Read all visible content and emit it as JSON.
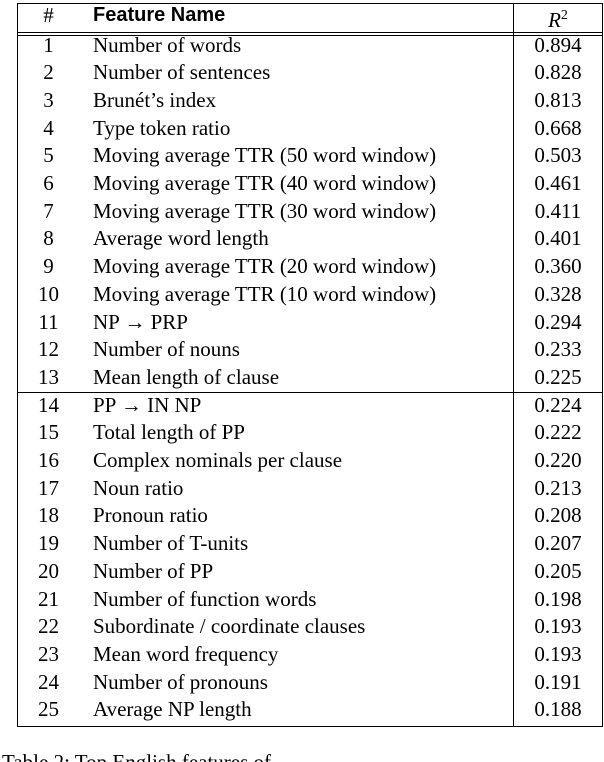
{
  "table": {
    "header": {
      "index": "#",
      "feature": "Feature Name",
      "r2": "R",
      "r2_sup": "2"
    },
    "groups": [
      [
        [
          "1",
          "Number of words",
          "0.894"
        ],
        [
          "2",
          "Number of sentences",
          "0.828"
        ],
        [
          "3",
          "Brunét’s index",
          "0.813"
        ],
        [
          "4",
          "Type token ratio",
          "0.668"
        ],
        [
          "5",
          "Moving average TTR (50 word window)",
          "0.503"
        ],
        [
          "6",
          "Moving average TTR (40 word window)",
          "0.461"
        ],
        [
          "7",
          "Moving average TTR (30 word window)",
          "0.411"
        ],
        [
          "8",
          "Average word length",
          "0.401"
        ],
        [
          "9",
          "Moving average TTR (20 word window)",
          "0.360"
        ],
        [
          "10",
          "Moving average TTR (10 word window)",
          "0.328"
        ],
        [
          "11",
          "NP → PRP",
          "0.294"
        ],
        [
          "12",
          "Number of nouns",
          "0.233"
        ],
        [
          "13",
          "Mean length of clause",
          "0.225"
        ]
      ],
      [
        [
          "14",
          "PP → IN NP",
          "0.224"
        ],
        [
          "15",
          "Total length of PP",
          "0.222"
        ],
        [
          "16",
          "Complex nominals per clause",
          "0.220"
        ],
        [
          "17",
          "Noun ratio",
          "0.213"
        ],
        [
          "18",
          "Pronoun ratio",
          "0.208"
        ],
        [
          "19",
          "Number of T-units",
          "0.207"
        ],
        [
          "20",
          "Number of PP",
          "0.205"
        ],
        [
          "21",
          "Number of function words",
          "0.198"
        ],
        [
          "22",
          "Subordinate / coordinate clauses",
          "0.193"
        ],
        [
          "23",
          "Mean word frequency",
          "0.193"
        ],
        [
          "24",
          "Number of pronouns",
          "0.191"
        ],
        [
          "25",
          "Average NP length",
          "0.188"
        ]
      ]
    ]
  },
  "caption": "Table 2: Top English features of"
}
